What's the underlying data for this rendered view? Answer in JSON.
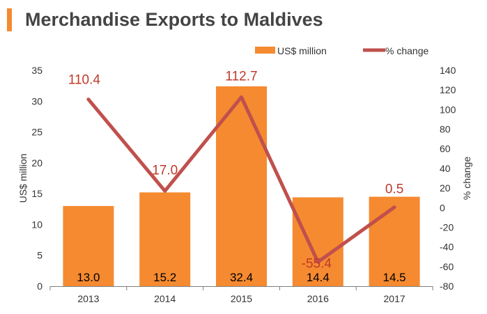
{
  "title": "Merchandise Exports to Maldives",
  "colors": {
    "accent": "#F58A30",
    "bar": "#F58A30",
    "line": "#C0504D",
    "line_label": "#C0392B",
    "title": "#444444",
    "text": "#333333",
    "axis": "#7F7F7F"
  },
  "chart_data": {
    "type": "bar",
    "title": "Merchandise Exports to Maldives",
    "categories": [
      "2013",
      "2014",
      "2015",
      "2016",
      "2017"
    ],
    "legend_position": "top-right",
    "grid": false,
    "series": [
      {
        "name": "US$ million",
        "type": "bar",
        "axis": "left",
        "values": [
          13.0,
          15.2,
          32.4,
          14.4,
          14.5
        ],
        "labels": [
          "13.0",
          "15.2",
          "32.4",
          "14.4",
          "14.5"
        ]
      },
      {
        "name": "% change",
        "type": "line",
        "axis": "right",
        "values": [
          110.4,
          17.0,
          112.7,
          -55.4,
          0.5
        ],
        "labels": [
          "110.4",
          "17.0",
          "112.7",
          "-55.4",
          "0.5"
        ]
      }
    ],
    "y_left": {
      "label": "US$ million",
      "ylim": [
        0,
        35
      ],
      "ticks": [
        "0",
        "5",
        "10",
        "15",
        "20",
        "25",
        "30",
        "35"
      ]
    },
    "y_right": {
      "label": "% change",
      "ylim": [
        -80,
        140
      ],
      "ticks": [
        "-80",
        "-60",
        "-40",
        "-20",
        "0",
        "20",
        "40",
        "60",
        "80",
        "100",
        "120",
        "140"
      ]
    }
  }
}
